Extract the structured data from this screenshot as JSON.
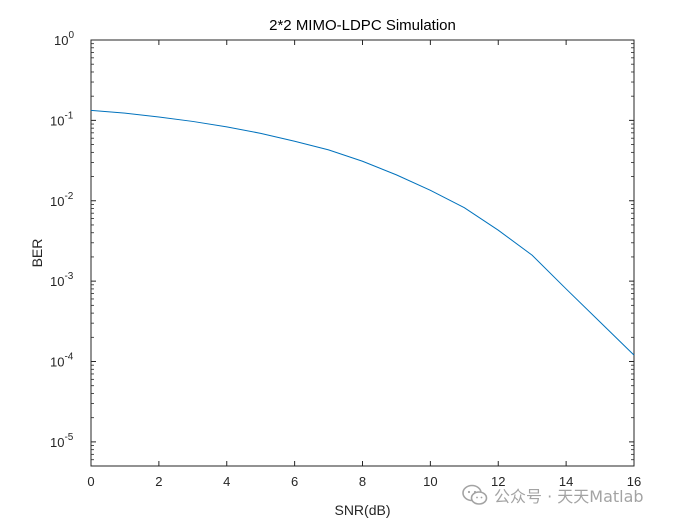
{
  "chart_data": {
    "type": "line",
    "title": "2*2 MIMO-LDPC Simulation",
    "xlabel": "SNR(dB)",
    "ylabel": "BER",
    "x_scale": "linear",
    "y_scale": "log",
    "xlim": [
      0,
      16
    ],
    "ylim_exponents": [
      -5.3,
      0
    ],
    "x_ticks": [
      "0",
      "2",
      "4",
      "6",
      "8",
      "10",
      "12",
      "14",
      "16"
    ],
    "y_tick_exponents": [
      "0",
      "-1",
      "-2",
      "-3",
      "-4",
      "-5"
    ],
    "y_tick_base": "10",
    "grid": false,
    "legend": "none",
    "series": [
      {
        "color": "#0072BD",
        "x": [
          0,
          1,
          2,
          3,
          4,
          5,
          6,
          7,
          8,
          9,
          10,
          11,
          12,
          13,
          14,
          15,
          16
        ],
        "y": [
          0.133,
          0.123,
          0.11,
          0.097,
          0.083,
          0.069,
          0.055,
          0.043,
          0.031,
          0.021,
          0.0135,
          0.0082,
          0.0043,
          0.0021,
          0.0008,
          0.00031,
          0.00012
        ]
      }
    ]
  },
  "watermark": {
    "text": "公众号 · 天天Matlab",
    "icon": "wechat-icon"
  }
}
